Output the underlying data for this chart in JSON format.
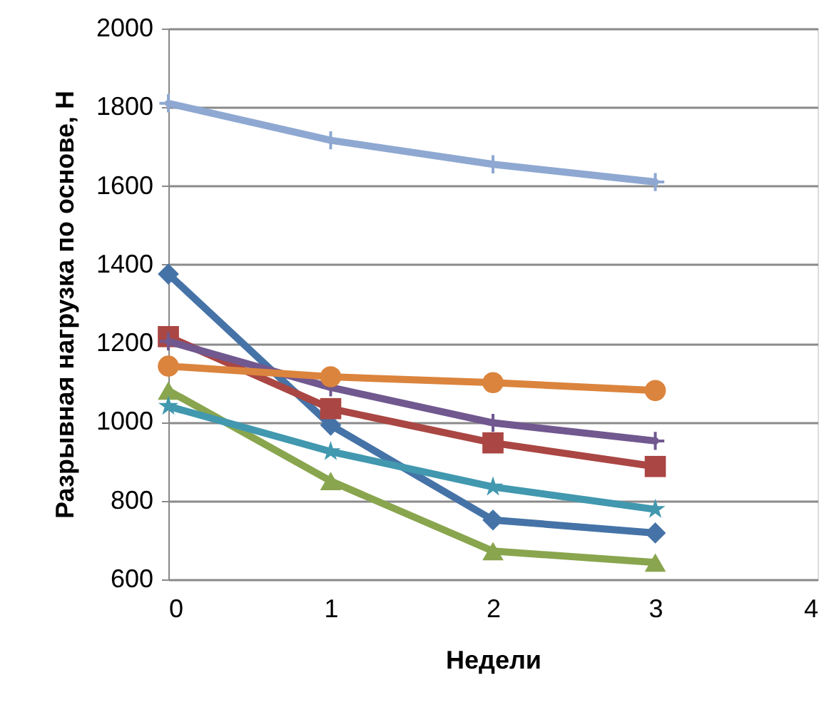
{
  "chart_data": {
    "type": "line",
    "xlabel": "Недели",
    "ylabel": "Разрывная нагрузка по основе, Н",
    "x": [
      0,
      1,
      2,
      3
    ],
    "xlim": [
      0,
      4
    ],
    "xticks": [
      0,
      1,
      2,
      3,
      4
    ],
    "ylim": [
      600,
      2000
    ],
    "yticks": [
      600,
      800,
      1000,
      1200,
      1400,
      1600,
      1800,
      2000
    ],
    "grid": "y",
    "line_style": "solid",
    "series": [
      {
        "color": "#4573a7",
        "marker": "diamond",
        "values": [
          1376,
          992,
          751,
          718
        ]
      },
      {
        "color": "#aa4643",
        "marker": "square",
        "values": [
          1217,
          1034,
          947,
          887
        ]
      },
      {
        "color": "#89a54e",
        "marker": "triangle",
        "values": [
          1080,
          850,
          672,
          643
        ]
      },
      {
        "color": "#71588f",
        "marker": "cross",
        "values": [
          1205,
          1088,
          998,
          952
        ]
      },
      {
        "color": "#4198af",
        "marker": "star",
        "values": [
          1040,
          925,
          835,
          778
        ]
      },
      {
        "color": "#db843d",
        "marker": "circle",
        "values": [
          1142,
          1115,
          1100,
          1080
        ]
      },
      {
        "color": "#8ea8d1",
        "marker": "cross",
        "values": [
          1810,
          1716,
          1655,
          1610
        ]
      }
    ]
  }
}
